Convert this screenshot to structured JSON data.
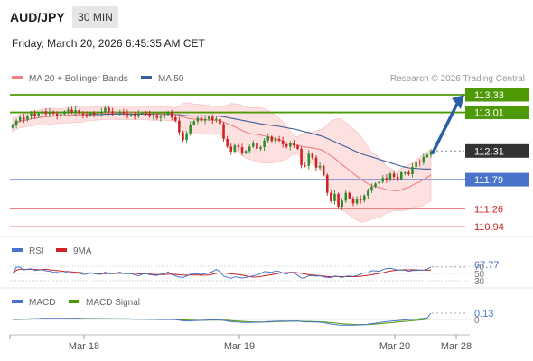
{
  "header": {
    "symbol": "AUD/JPY",
    "timeframe": "30 MIN",
    "datetime": "Friday, March 20, 2026 6:45:35 AM CET"
  },
  "legend": {
    "ma20": "MA 20 + Bollinger Bands",
    "ma50": "MA 50",
    "credit": "Research © 2026 Trading Central",
    "rsi": "RSI",
    "rsi_ma": "9MA",
    "macd": "MACD",
    "macd_signal": "MACD Signal"
  },
  "colors": {
    "green_level": "#4e9a06",
    "blue_level": "#4a74c9",
    "red_level": "#f08080",
    "current": "#333333",
    "ma20": "#f08080",
    "ma50": "#3a5f9a",
    "band_fill": "#fde0e0",
    "candle_up": "#2e8b2e",
    "candle_down": "#cc2222",
    "arrow": "#2a5fa8",
    "rsi": "#4a74c9",
    "rsi_ma": "#cc2222",
    "macd": "#4a74c9",
    "macd_signal": "#4e9a06"
  },
  "chart_data": {
    "type": "candlestick",
    "x_ticks": [
      "Mar 18",
      "Mar 19",
      "Mar 20",
      "Mar 28"
    ],
    "y_range": [
      110.8,
      113.45
    ],
    "levels": [
      {
        "value": 113.33,
        "label": "113.33",
        "kind": "resistance"
      },
      {
        "value": 113.01,
        "label": "113.01",
        "kind": "resistance"
      },
      {
        "value": 112.31,
        "label": "112.31",
        "kind": "current"
      },
      {
        "value": 111.79,
        "label": "111.79",
        "kind": "pivot"
      },
      {
        "value": 111.26,
        "label": "111.26",
        "kind": "support"
      },
      {
        "value": 110.94,
        "label": "110.94",
        "kind": "support"
      }
    ],
    "close": [
      112.78,
      112.86,
      112.92,
      112.88,
      112.95,
      112.99,
      112.94,
      112.99,
      113.03,
      112.98,
      113.02,
      112.99,
      112.95,
      112.98,
      113.03,
      113.06,
      113.01,
      113.05,
      112.99,
      112.97,
      112.95,
      113.0,
      112.97,
      112.99,
      113.02,
      113.09,
      113.03,
      112.99,
      112.99,
      113.02,
      112.99,
      112.96,
      112.98,
      112.95,
      112.99,
      113.0,
      112.99,
      112.94,
      112.96,
      112.91,
      112.93,
      112.97,
      113.02,
      112.92,
      112.86,
      112.65,
      112.51,
      112.63,
      112.79,
      112.85,
      112.91,
      112.86,
      112.89,
      112.93,
      112.87,
      112.89,
      112.8,
      112.53,
      112.39,
      112.3,
      112.41,
      112.38,
      112.27,
      112.31,
      112.39,
      112.45,
      112.35,
      112.38,
      112.5,
      112.57,
      112.49,
      112.53,
      112.5,
      112.43,
      112.39,
      112.45,
      112.41,
      112.35,
      112.05,
      112.04,
      112.26,
      112.19,
      112.01,
      112.04,
      111.87,
      111.55,
      111.4,
      111.53,
      111.3,
      111.41,
      111.55,
      111.45,
      111.36,
      111.44,
      111.41,
      111.5,
      111.59,
      111.66,
      111.72,
      111.75,
      111.82,
      111.79,
      111.9,
      111.84,
      111.8,
      111.92,
      111.92,
      111.89,
      112.02,
      112.12,
      112.1,
      112.2,
      112.24,
      112.31
    ],
    "rsi": {
      "last": 67.77,
      "ticks": [
        70,
        50,
        30
      ]
    },
    "macd": {
      "last": 0.13,
      "ticks": [
        0.13,
        0
      ]
    }
  }
}
